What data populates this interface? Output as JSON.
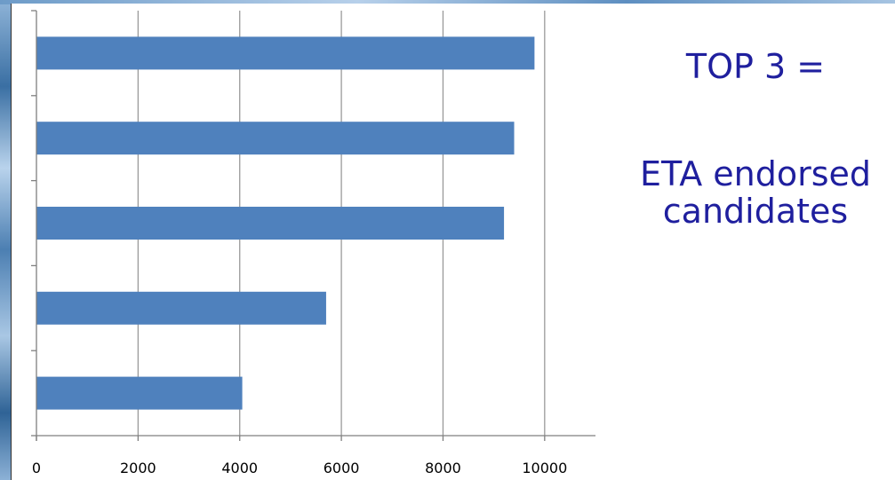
{
  "annotation": {
    "line1": "TOP 3 =",
    "line2": "ETA endorsed",
    "line3": "candidates"
  },
  "colors": {
    "bar": "#4f81bd",
    "gridline": "#9a9a9a",
    "axis": "#7f7f7f",
    "text_accent": "#1f1f9e"
  },
  "chart_data": {
    "type": "bar",
    "orientation": "horizontal",
    "categories": [
      "",
      "",
      "",
      "",
      ""
    ],
    "values": [
      9800,
      9400,
      9200,
      5700,
      4050
    ],
    "xlim": [
      0,
      11000
    ],
    "x_ticks": [
      "0",
      "2000",
      "4000",
      "6000",
      "8000",
      "10000"
    ],
    "x_tick_values": [
      0,
      2000,
      4000,
      6000,
      8000,
      10000
    ],
    "grid": "vertical",
    "title": "",
    "xlabel": "",
    "ylabel": ""
  }
}
